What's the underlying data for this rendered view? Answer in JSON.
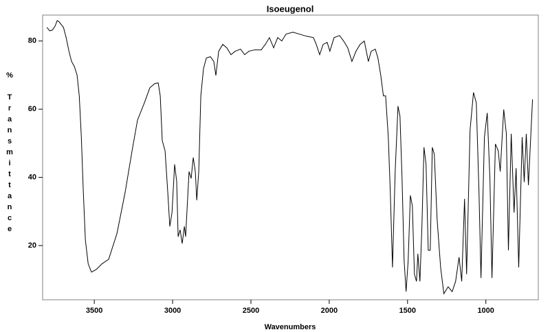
{
  "chart_data": {
    "type": "line",
    "title": "Isoeugenol",
    "xlabel": "Wavenumbers",
    "ylabel": "% Transmittance",
    "color": "#000000",
    "xlim": [
      3830,
      665
    ],
    "ylim": [
      4.1,
      87.6
    ],
    "xticks": [
      3500,
      3000,
      2500,
      2000,
      1500,
      1000
    ],
    "yticks": [
      20,
      40,
      60,
      80
    ],
    "x": [
      3803,
      3785,
      3768,
      3750,
      3737,
      3724,
      3711,
      3697,
      3680,
      3662,
      3645,
      3627,
      3610,
      3596,
      3583,
      3570,
      3557,
      3539,
      3518,
      3487,
      3452,
      3408,
      3355,
      3303,
      3259,
      3224,
      3180,
      3145,
      3114,
      3092,
      3079,
      3066,
      3048,
      3031,
      3018,
      3004,
      2987,
      2974,
      2965,
      2952,
      2939,
      2925,
      2917,
      2904,
      2895,
      2882,
      2868,
      2855,
      2846,
      2833,
      2820,
      2803,
      2785,
      2759,
      2737,
      2724,
      2706,
      2680,
      2654,
      2627,
      2601,
      2566,
      2540,
      2513,
      2478,
      2434,
      2408,
      2382,
      2355,
      2329,
      2303,
      2276,
      2232,
      2189,
      2145,
      2101,
      2083,
      2061,
      2039,
      2013,
      1996,
      1969,
      1934,
      1908,
      1882,
      1855,
      1829,
      1803,
      1776,
      1750,
      1732,
      1706,
      1689,
      1671,
      1654,
      1640,
      1623,
      1610,
      1596,
      1579,
      1561,
      1548,
      1535,
      1522,
      1509,
      1496,
      1482,
      1469,
      1456,
      1443,
      1434,
      1421,
      1408,
      1395,
      1382,
      1368,
      1355,
      1342,
      1329,
      1311,
      1289,
      1268,
      1241,
      1215,
      1193,
      1171,
      1154,
      1136,
      1123,
      1101,
      1079,
      1061,
      1044,
      1031,
      1009,
      991,
      974,
      961,
      939,
      921,
      908,
      886,
      869,
      856,
      838,
      820,
      807,
      790,
      768,
      755,
      742,
      728,
      702
    ],
    "values": [
      84.0,
      83.0,
      83.2,
      84.4,
      86.0,
      85.6,
      84.8,
      84.0,
      81.0,
      77.0,
      74.0,
      72.5,
      70.0,
      63.9,
      51.8,
      35.7,
      21.6,
      14.6,
      12.2,
      13.0,
      14.6,
      16.0,
      23.6,
      35.7,
      47.8,
      56.8,
      61.9,
      66.3,
      67.5,
      67.7,
      63.9,
      50.8,
      47.8,
      35.7,
      25.6,
      29.7,
      43.8,
      38.8,
      22.6,
      24.6,
      20.6,
      25.6,
      22.6,
      33.7,
      41.7,
      39.7,
      45.8,
      41.7,
      33.3,
      41.7,
      63.9,
      71.9,
      75.0,
      75.4,
      74.0,
      69.9,
      77.0,
      79.0,
      78.0,
      76.0,
      77.0,
      77.6,
      76.0,
      77.0,
      77.4,
      77.4,
      79.0,
      81.0,
      78.0,
      81.0,
      80.0,
      82.0,
      82.6,
      82.0,
      81.4,
      81.0,
      79.0,
      76.0,
      79.0,
      79.6,
      77.0,
      81.0,
      81.6,
      80.0,
      78.0,
      74.0,
      77.0,
      79.0,
      80.0,
      74.0,
      77.0,
      77.6,
      75.0,
      70.0,
      63.9,
      63.9,
      51.8,
      35.7,
      13.6,
      41.7,
      60.9,
      57.9,
      39.7,
      15.6,
      6.5,
      15.6,
      34.7,
      31.6,
      11.6,
      9.5,
      17.6,
      9.5,
      25.6,
      48.8,
      43.8,
      18.6,
      18.6,
      48.8,
      46.8,
      27.7,
      13.6,
      5.9,
      7.9,
      6.5,
      9.5,
      16.6,
      9.5,
      33.7,
      11.6,
      53.8,
      64.9,
      61.9,
      35.7,
      10.5,
      51.8,
      58.9,
      39.7,
      10.5,
      49.8,
      47.8,
      41.7,
      59.9,
      52.8,
      18.6,
      52.8,
      29.7,
      42.7,
      13.6,
      51.8,
      38.6,
      52.8,
      37.7,
      62.9
    ]
  }
}
